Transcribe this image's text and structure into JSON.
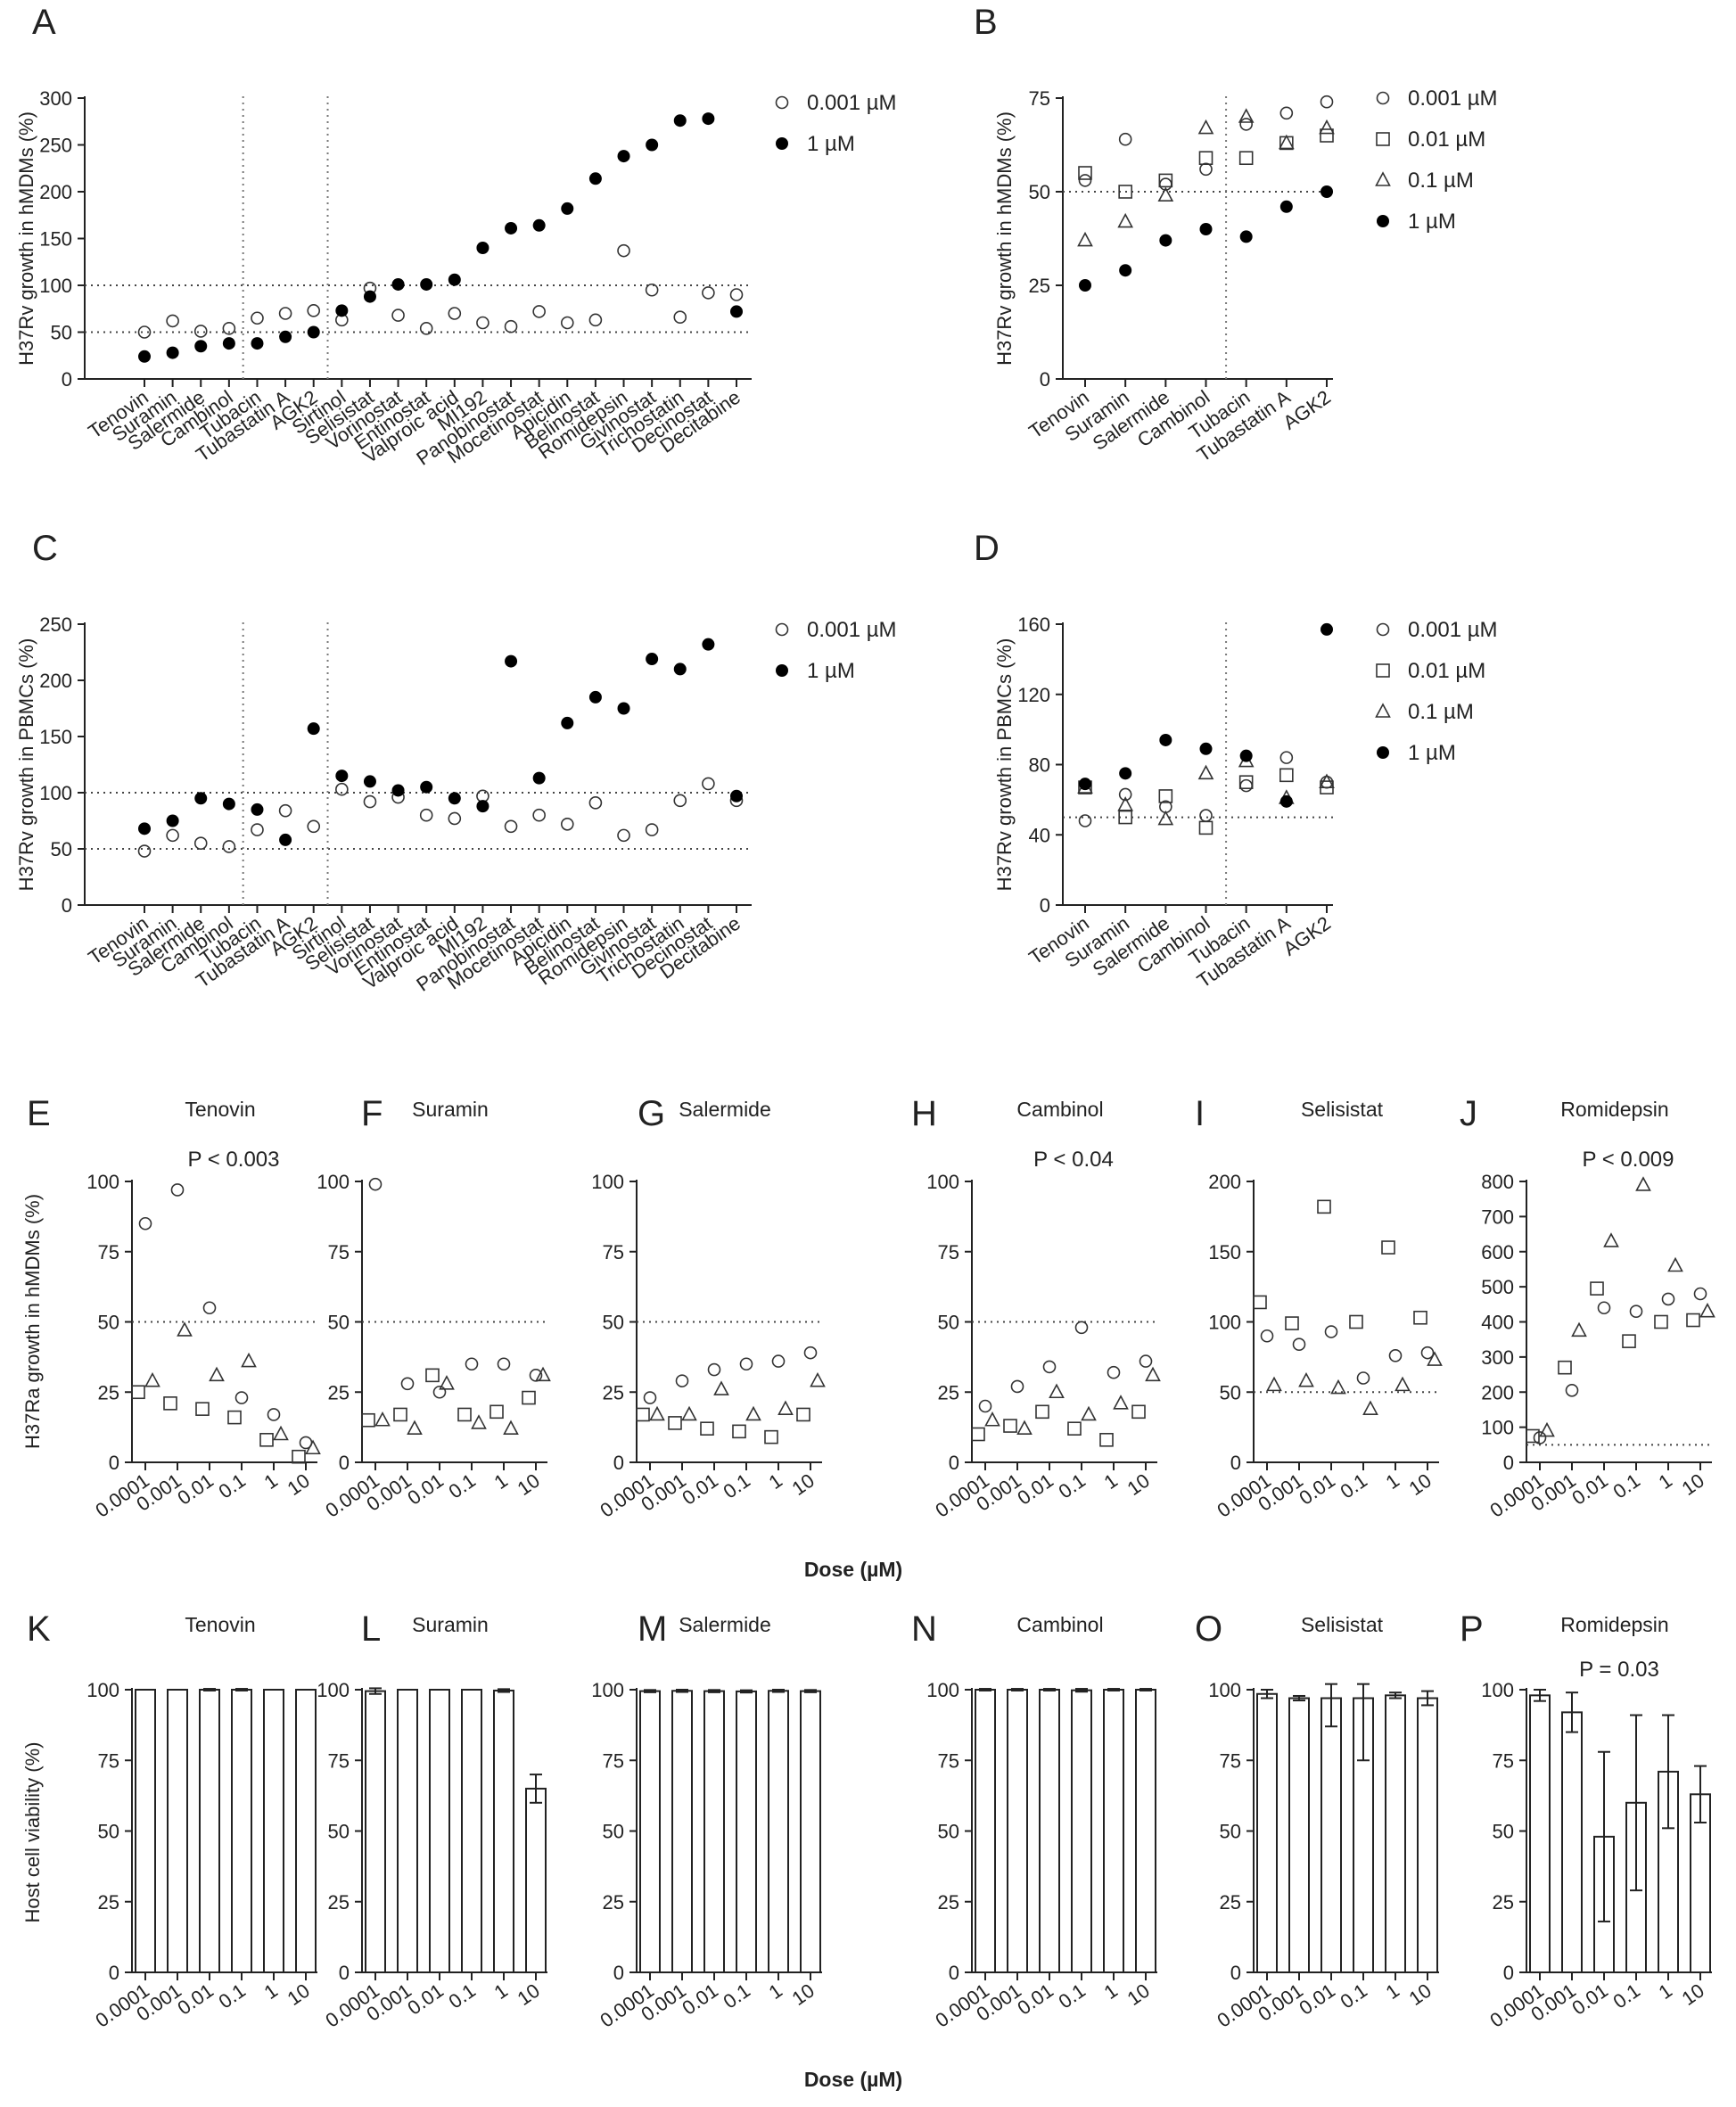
{
  "figure": {
    "dose_label": "Dose (µM)",
    "dose_ticks": [
      "0.0001",
      "0.001",
      "0.01",
      "0.1",
      "1",
      "10"
    ],
    "ylabel_E": "H37Ra growth in hMDMs (%)",
    "ylabel_K": "Host cell viability (%)"
  },
  "chart_data": [
    {
      "id": "A",
      "type": "scatter",
      "panel_letter": "A",
      "ylabel": "H37Rv growth in hMDMs (%)",
      "ylim": [
        0,
        300
      ],
      "yticks": [
        0,
        50,
        100,
        150,
        200,
        250,
        300
      ],
      "categories": [
        "Tenovin",
        "Suramin",
        "Salermide",
        "Cambinol",
        "Tubacin",
        "Tubastatin A",
        "AGK2",
        "Sirtinol",
        "Selisistat",
        "Vorinostat",
        "Entinostat",
        "Valproic acid",
        "MI192",
        "Panobinostat",
        "Mocetinostat",
        "Apicidin",
        "Belinostat",
        "Romidepsin",
        "Givinostat",
        "Trichostatin",
        "Decinostat",
        "Decitabine"
      ],
      "series": [
        {
          "name": "0.001 µM",
          "values": [
            50,
            62,
            51,
            54,
            65,
            70,
            73,
            63,
            97,
            68,
            54,
            70,
            60,
            56,
            72,
            60,
            63,
            137,
            95,
            66,
            92,
            90
          ]
        },
        {
          "name": "1 µM",
          "values": [
            24,
            28,
            35,
            38,
            38,
            45,
            50,
            73,
            88,
            101,
            101,
            106,
            140,
            161,
            164,
            182,
            214,
            238,
            250,
            276,
            278,
            72
          ]
        }
      ],
      "hlines": [
        50,
        100
      ],
      "vlines_after": [
        3,
        6
      ],
      "legend": "top-right",
      "grid": false
    },
    {
      "id": "B",
      "type": "scatter",
      "panel_letter": "B",
      "ylabel": "H37Rv growth in hMDMs (%)",
      "ylim": [
        0,
        75
      ],
      "yticks": [
        0,
        25,
        50,
        75
      ],
      "categories": [
        "Tenovin",
        "Suramin",
        "Salermide",
        "Cambinol",
        "Tubacin",
        "Tubastatin A",
        "AGK2"
      ],
      "series": [
        {
          "name": "0.001 µM",
          "values": [
            53,
            64,
            52,
            56,
            68,
            71,
            74
          ]
        },
        {
          "name": "0.01 µM",
          "values": [
            55,
            50,
            53,
            59,
            59,
            63,
            65
          ]
        },
        {
          "name": "0.1 µM",
          "values": [
            37,
            42,
            49,
            67,
            70,
            63,
            67
          ]
        },
        {
          "name": "1 µM",
          "values": [
            25,
            29,
            37,
            40,
            38,
            46,
            50
          ]
        }
      ],
      "hlines": [
        50
      ],
      "vlines_after": [
        3
      ],
      "legend": "top-right",
      "grid": false
    },
    {
      "id": "C",
      "type": "scatter",
      "panel_letter": "C",
      "ylabel": "H37Rv growth in PBMCs (%)",
      "ylim": [
        0,
        250
      ],
      "yticks": [
        0,
        50,
        100,
        150,
        200,
        250
      ],
      "categories": [
        "Tenovin",
        "Suramin",
        "Salermide",
        "Cambinol",
        "Tubacin",
        "Tubastatin A",
        "AGK2",
        "Sirtinol",
        "Selisistat",
        "Vorinostat",
        "Entinostat",
        "Valproic acid",
        "MI192",
        "Panobinostat",
        "Mocetinostat",
        "Apicidin",
        "Belinostat",
        "Romidepsin",
        "Givinostat",
        "Trichostatin",
        "Decinostat",
        "Decitabine"
      ],
      "series": [
        {
          "name": "0.001 µM",
          "values": [
            48,
            62,
            55,
            52,
            67,
            84,
            70,
            103,
            92,
            96,
            80,
            77,
            97,
            70,
            80,
            72,
            91,
            62,
            67,
            93,
            108,
            93
          ]
        },
        {
          "name": "1 µM",
          "values": [
            68,
            75,
            95,
            90,
            85,
            58,
            157,
            115,
            110,
            102,
            105,
            95,
            88,
            217,
            113,
            162,
            185,
            175,
            219,
            210,
            232,
            97
          ]
        }
      ],
      "hlines": [
        50,
        100
      ],
      "vlines_after": [
        3,
        6
      ],
      "legend": "top-right",
      "grid": false
    },
    {
      "id": "D",
      "type": "scatter",
      "panel_letter": "D",
      "ylabel": "H37Rv growth in PBMCs (%)",
      "ylim": [
        0,
        160
      ],
      "yticks": [
        0,
        40,
        80,
        120,
        160
      ],
      "categories": [
        "Tenovin",
        "Suramin",
        "Salermide",
        "Cambinol",
        "Tubacin",
        "Tubastatin A",
        "AGK2"
      ],
      "series": [
        {
          "name": "0.001 µM",
          "values": [
            48,
            63,
            56,
            51,
            68,
            84,
            70
          ]
        },
        {
          "name": "0.01 µM",
          "values": [
            67,
            50,
            62,
            44,
            70,
            74,
            67
          ]
        },
        {
          "name": "0.1 µM",
          "values": [
            67,
            57,
            49,
            75,
            82,
            61,
            70
          ]
        },
        {
          "name": "1 µM",
          "values": [
            69,
            75,
            94,
            89,
            85,
            59,
            157
          ]
        }
      ],
      "hlines": [
        50
      ],
      "vlines_after": [
        3
      ],
      "legend": "top-right",
      "grid": false
    },
    {
      "id": "E",
      "type": "scatter",
      "panel_letter": "E",
      "title": "Tenovin",
      "annotation": "P < 0.003",
      "ylim": [
        0,
        100
      ],
      "yticks": [
        0,
        25,
        50,
        75,
        100
      ],
      "categories": [
        "0.0001",
        "0.001",
        "0.01",
        "0.1",
        "1",
        "10"
      ],
      "series": [
        {
          "name": "0.001 µM",
          "values": [
            85,
            97,
            55,
            23,
            17,
            7
          ]
        },
        {
          "name": "0.01 µM",
          "values": [
            25,
            21,
            19,
            16,
            8,
            2
          ]
        },
        {
          "name": "0.1 µM",
          "values": [
            29,
            47,
            31,
            36,
            10,
            5
          ]
        }
      ],
      "hlines": [
        50
      ],
      "grid": false
    },
    {
      "id": "F",
      "type": "scatter",
      "panel_letter": "F",
      "title": "Suramin",
      "ylim": [
        0,
        100
      ],
      "yticks": [
        0,
        25,
        50,
        75,
        100
      ],
      "categories": [
        "0.0001",
        "0.001",
        "0.01",
        "0.1",
        "1",
        "10"
      ],
      "series": [
        {
          "name": "0.001 µM",
          "values": [
            99,
            28,
            25,
            35,
            35,
            31
          ]
        },
        {
          "name": "0.01 µM",
          "values": [
            15,
            17,
            31,
            17,
            18,
            23
          ]
        },
        {
          "name": "0.1 µM",
          "values": [
            15,
            12,
            28,
            14,
            12,
            31
          ]
        }
      ],
      "hlines": [
        50
      ],
      "grid": false
    },
    {
      "id": "G",
      "type": "scatter",
      "panel_letter": "G",
      "title": "Salermide",
      "ylim": [
        0,
        100
      ],
      "yticks": [
        0,
        25,
        50,
        75,
        100
      ],
      "categories": [
        "0.0001",
        "0.001",
        "0.01",
        "0.1",
        "1",
        "10"
      ],
      "series": [
        {
          "name": "0.001 µM",
          "values": [
            23,
            29,
            33,
            35,
            36,
            39
          ]
        },
        {
          "name": "0.01 µM",
          "values": [
            17,
            14,
            12,
            11,
            9,
            17
          ]
        },
        {
          "name": "0.1 µM",
          "values": [
            17,
            17,
            26,
            17,
            19,
            29
          ]
        }
      ],
      "hlines": [
        50
      ],
      "grid": false
    },
    {
      "id": "H",
      "type": "scatter",
      "panel_letter": "H",
      "title": "Cambinol",
      "annotation": "P < 0.04",
      "ylim": [
        0,
        100
      ],
      "yticks": [
        0,
        25,
        50,
        75,
        100
      ],
      "categories": [
        "0.0001",
        "0.001",
        "0.01",
        "0.1",
        "1",
        "10"
      ],
      "series": [
        {
          "name": "0.001 µM",
          "values": [
            20,
            27,
            34,
            48,
            32,
            36
          ]
        },
        {
          "name": "0.01 µM",
          "values": [
            10,
            13,
            18,
            12,
            8,
            18
          ]
        },
        {
          "name": "0.1 µM",
          "values": [
            15,
            12,
            25,
            17,
            21,
            31
          ]
        }
      ],
      "hlines": [
        50
      ],
      "grid": false
    },
    {
      "id": "I",
      "type": "scatter",
      "panel_letter": "I",
      "title": "Selisistat",
      "ylim": [
        0,
        200
      ],
      "yticks": [
        0,
        50,
        100,
        150,
        200
      ],
      "categories": [
        "0.0001",
        "0.001",
        "0.01",
        "0.1",
        "1",
        "10"
      ],
      "series": [
        {
          "name": "0.001 µM",
          "values": [
            90,
            84,
            93,
            60,
            76,
            78
          ]
        },
        {
          "name": "0.01 µM",
          "values": [
            114,
            99,
            182,
            100,
            153,
            103
          ]
        },
        {
          "name": "0.1 µM",
          "values": [
            55,
            58,
            53,
            38,
            55,
            73
          ]
        }
      ],
      "hlines": [
        50
      ],
      "grid": false
    },
    {
      "id": "J",
      "type": "scatter",
      "panel_letter": "J",
      "title": "Romidepsin",
      "annotation": "P < 0.009",
      "ylim": [
        0,
        800
      ],
      "yticks": [
        0,
        100,
        200,
        300,
        400,
        500,
        600,
        700,
        800
      ],
      "categories": [
        "0.0001",
        "0.001",
        "0.01",
        "0.1",
        "1",
        "10"
      ],
      "series": [
        {
          "name": "0.001 µM",
          "values": [
            70,
            205,
            440,
            430,
            465,
            480
          ]
        },
        {
          "name": "0.01 µM",
          "values": [
            75,
            270,
            495,
            345,
            400,
            405
          ]
        },
        {
          "name": "0.1 µM",
          "values": [
            90,
            375,
            630,
            790,
            560,
            430
          ]
        }
      ],
      "hlines": [
        50
      ],
      "grid": false
    },
    {
      "id": "K",
      "type": "bar",
      "panel_letter": "K",
      "title": "Tenovin",
      "ylim": [
        0,
        100
      ],
      "yticks": [
        0,
        25,
        50,
        75,
        100
      ],
      "categories": [
        "0.0001",
        "0.001",
        "0.01",
        "0.1",
        "1",
        "10"
      ],
      "values": [
        100,
        100,
        100,
        100,
        100,
        100
      ],
      "errors": [
        0,
        0,
        0.3,
        0.3,
        0,
        0
      ],
      "grid": false
    },
    {
      "id": "L",
      "type": "bar",
      "panel_letter": "L",
      "title": "Suramin",
      "ylim": [
        0,
        100
      ],
      "yticks": [
        0,
        25,
        50,
        75,
        100
      ],
      "categories": [
        "0.0001",
        "0.001",
        "0.01",
        "0.1",
        "1",
        "10"
      ],
      "values": [
        99.5,
        100,
        100,
        100,
        99.7,
        65
      ],
      "errors": [
        1,
        0,
        0,
        0,
        0.5,
        5
      ],
      "grid": false
    },
    {
      "id": "M",
      "type": "bar",
      "panel_letter": "M",
      "title": "Salermide",
      "ylim": [
        0,
        100
      ],
      "yticks": [
        0,
        25,
        50,
        75,
        100
      ],
      "categories": [
        "0.0001",
        "0.001",
        "0.01",
        "0.1",
        "1",
        "10"
      ],
      "values": [
        99.5,
        99.6,
        99.5,
        99.4,
        99.6,
        99.5
      ],
      "errors": [
        0.4,
        0.4,
        0.4,
        0.4,
        0.4,
        0.4
      ],
      "grid": false
    },
    {
      "id": "N",
      "type": "bar",
      "panel_letter": "N",
      "title": "Cambinol",
      "ylim": [
        0,
        100
      ],
      "yticks": [
        0,
        25,
        50,
        75,
        100
      ],
      "categories": [
        "0.0001",
        "0.001",
        "0.01",
        "0.1",
        "1",
        "10"
      ],
      "values": [
        100,
        100,
        100,
        99.8,
        100,
        100
      ],
      "errors": [
        0.3,
        0.3,
        0.3,
        0.5,
        0.3,
        0.3
      ],
      "grid": false
    },
    {
      "id": "O",
      "type": "bar",
      "panel_letter": "O",
      "title": "Selisistat",
      "ylim": [
        0,
        100
      ],
      "yticks": [
        0,
        25,
        50,
        75,
        100
      ],
      "categories": [
        "0.0001",
        "0.001",
        "0.01",
        "0.1",
        "1",
        "10"
      ],
      "values": [
        98.5,
        97,
        97,
        97,
        98,
        97
      ],
      "errors": [
        1.5,
        0.8,
        10,
        22,
        1,
        2.5
      ],
      "grid": false
    },
    {
      "id": "P",
      "type": "bar",
      "panel_letter": "P",
      "title": "Romidepsin",
      "annotation": "P = 0.03",
      "ylim": [
        0,
        100
      ],
      "yticks": [
        0,
        25,
        50,
        75,
        100
      ],
      "categories": [
        "0.0001",
        "0.001",
        "0.01",
        "0.1",
        "1",
        "10"
      ],
      "values": [
        98,
        92,
        48,
        60,
        71,
        63
      ],
      "errors": [
        2,
        7,
        30,
        31,
        20,
        10
      ],
      "grid": false
    }
  ]
}
